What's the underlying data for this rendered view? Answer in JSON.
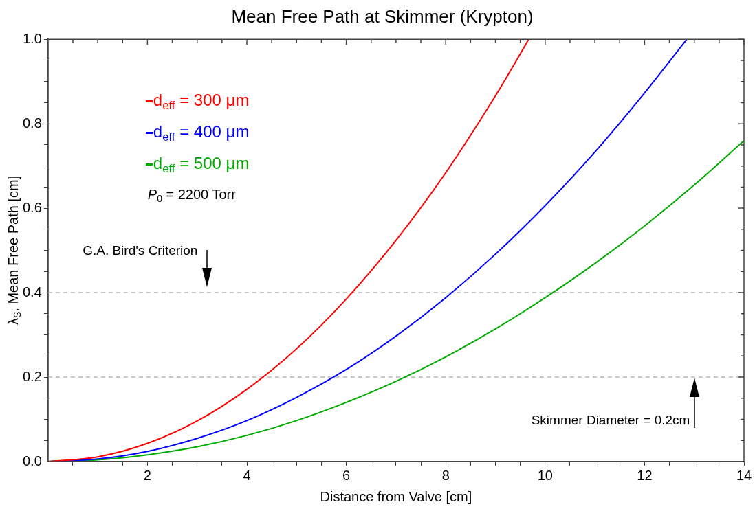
{
  "chart_data": {
    "type": "line",
    "title": "Mean Free Path at Skimmer (Krypton)",
    "xlabel": "Distance from Valve [cm]",
    "ylabel": "λ$_{S}$, Mean Free Path [cm]",
    "xlim": [
      0,
      14
    ],
    "ylim": [
      0,
      1
    ],
    "xticks": [
      {
        "value": 0.5,
        "label": null
      },
      {
        "value": 1,
        "label": null
      },
      {
        "value": 1.5,
        "label": null
      },
      2,
      {
        "value": 2.5,
        "label": null
      },
      {
        "value": 3,
        "label": null
      },
      {
        "value": 3.5,
        "label": null
      },
      4,
      {
        "value": 4.5,
        "label": null
      },
      {
        "value": 5,
        "label": null
      },
      {
        "value": 5.5,
        "label": null
      },
      6,
      {
        "value": 6.5,
        "label": null
      },
      {
        "value": 7,
        "label": null
      },
      {
        "value": 7.5,
        "label": null
      },
      8,
      {
        "value": 8.5,
        "label": null
      },
      {
        "value": 9,
        "label": null
      },
      {
        "value": 9.5,
        "label": null
      },
      10,
      {
        "value": 10.5,
        "label": null
      },
      {
        "value": 11,
        "label": null
      },
      {
        "value": 11.5,
        "label": null
      },
      12,
      {
        "value": 12.5,
        "label": null
      },
      {
        "value": 13,
        "label": null
      },
      {
        "value": 13.5,
        "label": null
      },
      14
    ],
    "yticks": [
      {
        "value": 0,
        "label": "0.0"
      },
      {
        "value": 0.05,
        "label": null
      },
      {
        "value": 0.1,
        "label": null
      },
      {
        "value": 0.15,
        "label": null
      },
      {
        "value": 0.2,
        "label": "0.2"
      },
      {
        "value": 0.25,
        "label": null
      },
      {
        "value": 0.3,
        "label": null
      },
      {
        "value": 0.35,
        "label": null
      },
      {
        "value": 0.4,
        "label": "0.4"
      },
      {
        "value": 0.45,
        "label": null
      },
      {
        "value": 0.5,
        "label": null
      },
      {
        "value": 0.55,
        "label": null
      },
      {
        "value": 0.6,
        "label": "0.6"
      },
      {
        "value": 0.65,
        "label": null
      },
      {
        "value": 0.7,
        "label": null
      },
      {
        "value": 0.75,
        "label": null
      },
      {
        "value": 0.8,
        "label": "0.8"
      },
      {
        "value": 0.85,
        "label": null
      },
      {
        "value": 0.9,
        "label": null
      },
      {
        "value": 0.95,
        "label": null
      },
      {
        "value": 1,
        "label": "1.0"
      }
    ],
    "grid": false,
    "legend": "top left",
    "marker": "none",
    "line_style": "solid",
    "series": [
      {
        "name": "d$_{eff}$ = 300 μm",
        "color": "#ff0000",
        "x": [
          0,
          1,
          2,
          3,
          4,
          5,
          6,
          7,
          8,
          9,
          9.67
        ],
        "values": [
          0,
          0.011,
          0.043,
          0.096,
          0.171,
          0.267,
          0.385,
          0.524,
          0.684,
          0.866,
          1.0
        ]
      },
      {
        "name": "d$_{eff}$ = 400 μm",
        "color": "#0000ff",
        "x": [
          0,
          1,
          2,
          3,
          4,
          5,
          6,
          7,
          8,
          9,
          10,
          11,
          12,
          12.85
        ],
        "values": [
          0,
          0.006,
          0.024,
          0.055,
          0.097,
          0.152,
          0.218,
          0.297,
          0.388,
          0.491,
          0.606,
          0.733,
          0.873,
          1.0
        ]
      },
      {
        "name": "d$_{eff}$ = 500 μm",
        "color": "#00aa00",
        "x": [
          0,
          1,
          2,
          3,
          4,
          5,
          6,
          7,
          8,
          9,
          10,
          11,
          12,
          13,
          14
        ],
        "values": [
          0,
          0.004,
          0.016,
          0.035,
          0.062,
          0.097,
          0.14,
          0.19,
          0.248,
          0.314,
          0.388,
          0.469,
          0.558,
          0.655,
          0.76
        ]
      }
    ],
    "ref_lines": [
      {
        "axis": "y",
        "value": 0.4,
        "color": "#c8c8c8",
        "line_style": "dashed"
      },
      {
        "axis": "y",
        "value": 0.2,
        "color": "#c8c8c8",
        "line_style": "dashed"
      }
    ],
    "annotations": [
      "P$_{0}$ = 2200 Torr",
      {
        "text": "G.A. Bird's Criterion",
        "x": 3.2,
        "y": 0.4
      },
      {
        "text": "Skimmer Diameter = 0.2cm",
        "x": 13,
        "y": 0.2
      }
    ]
  }
}
